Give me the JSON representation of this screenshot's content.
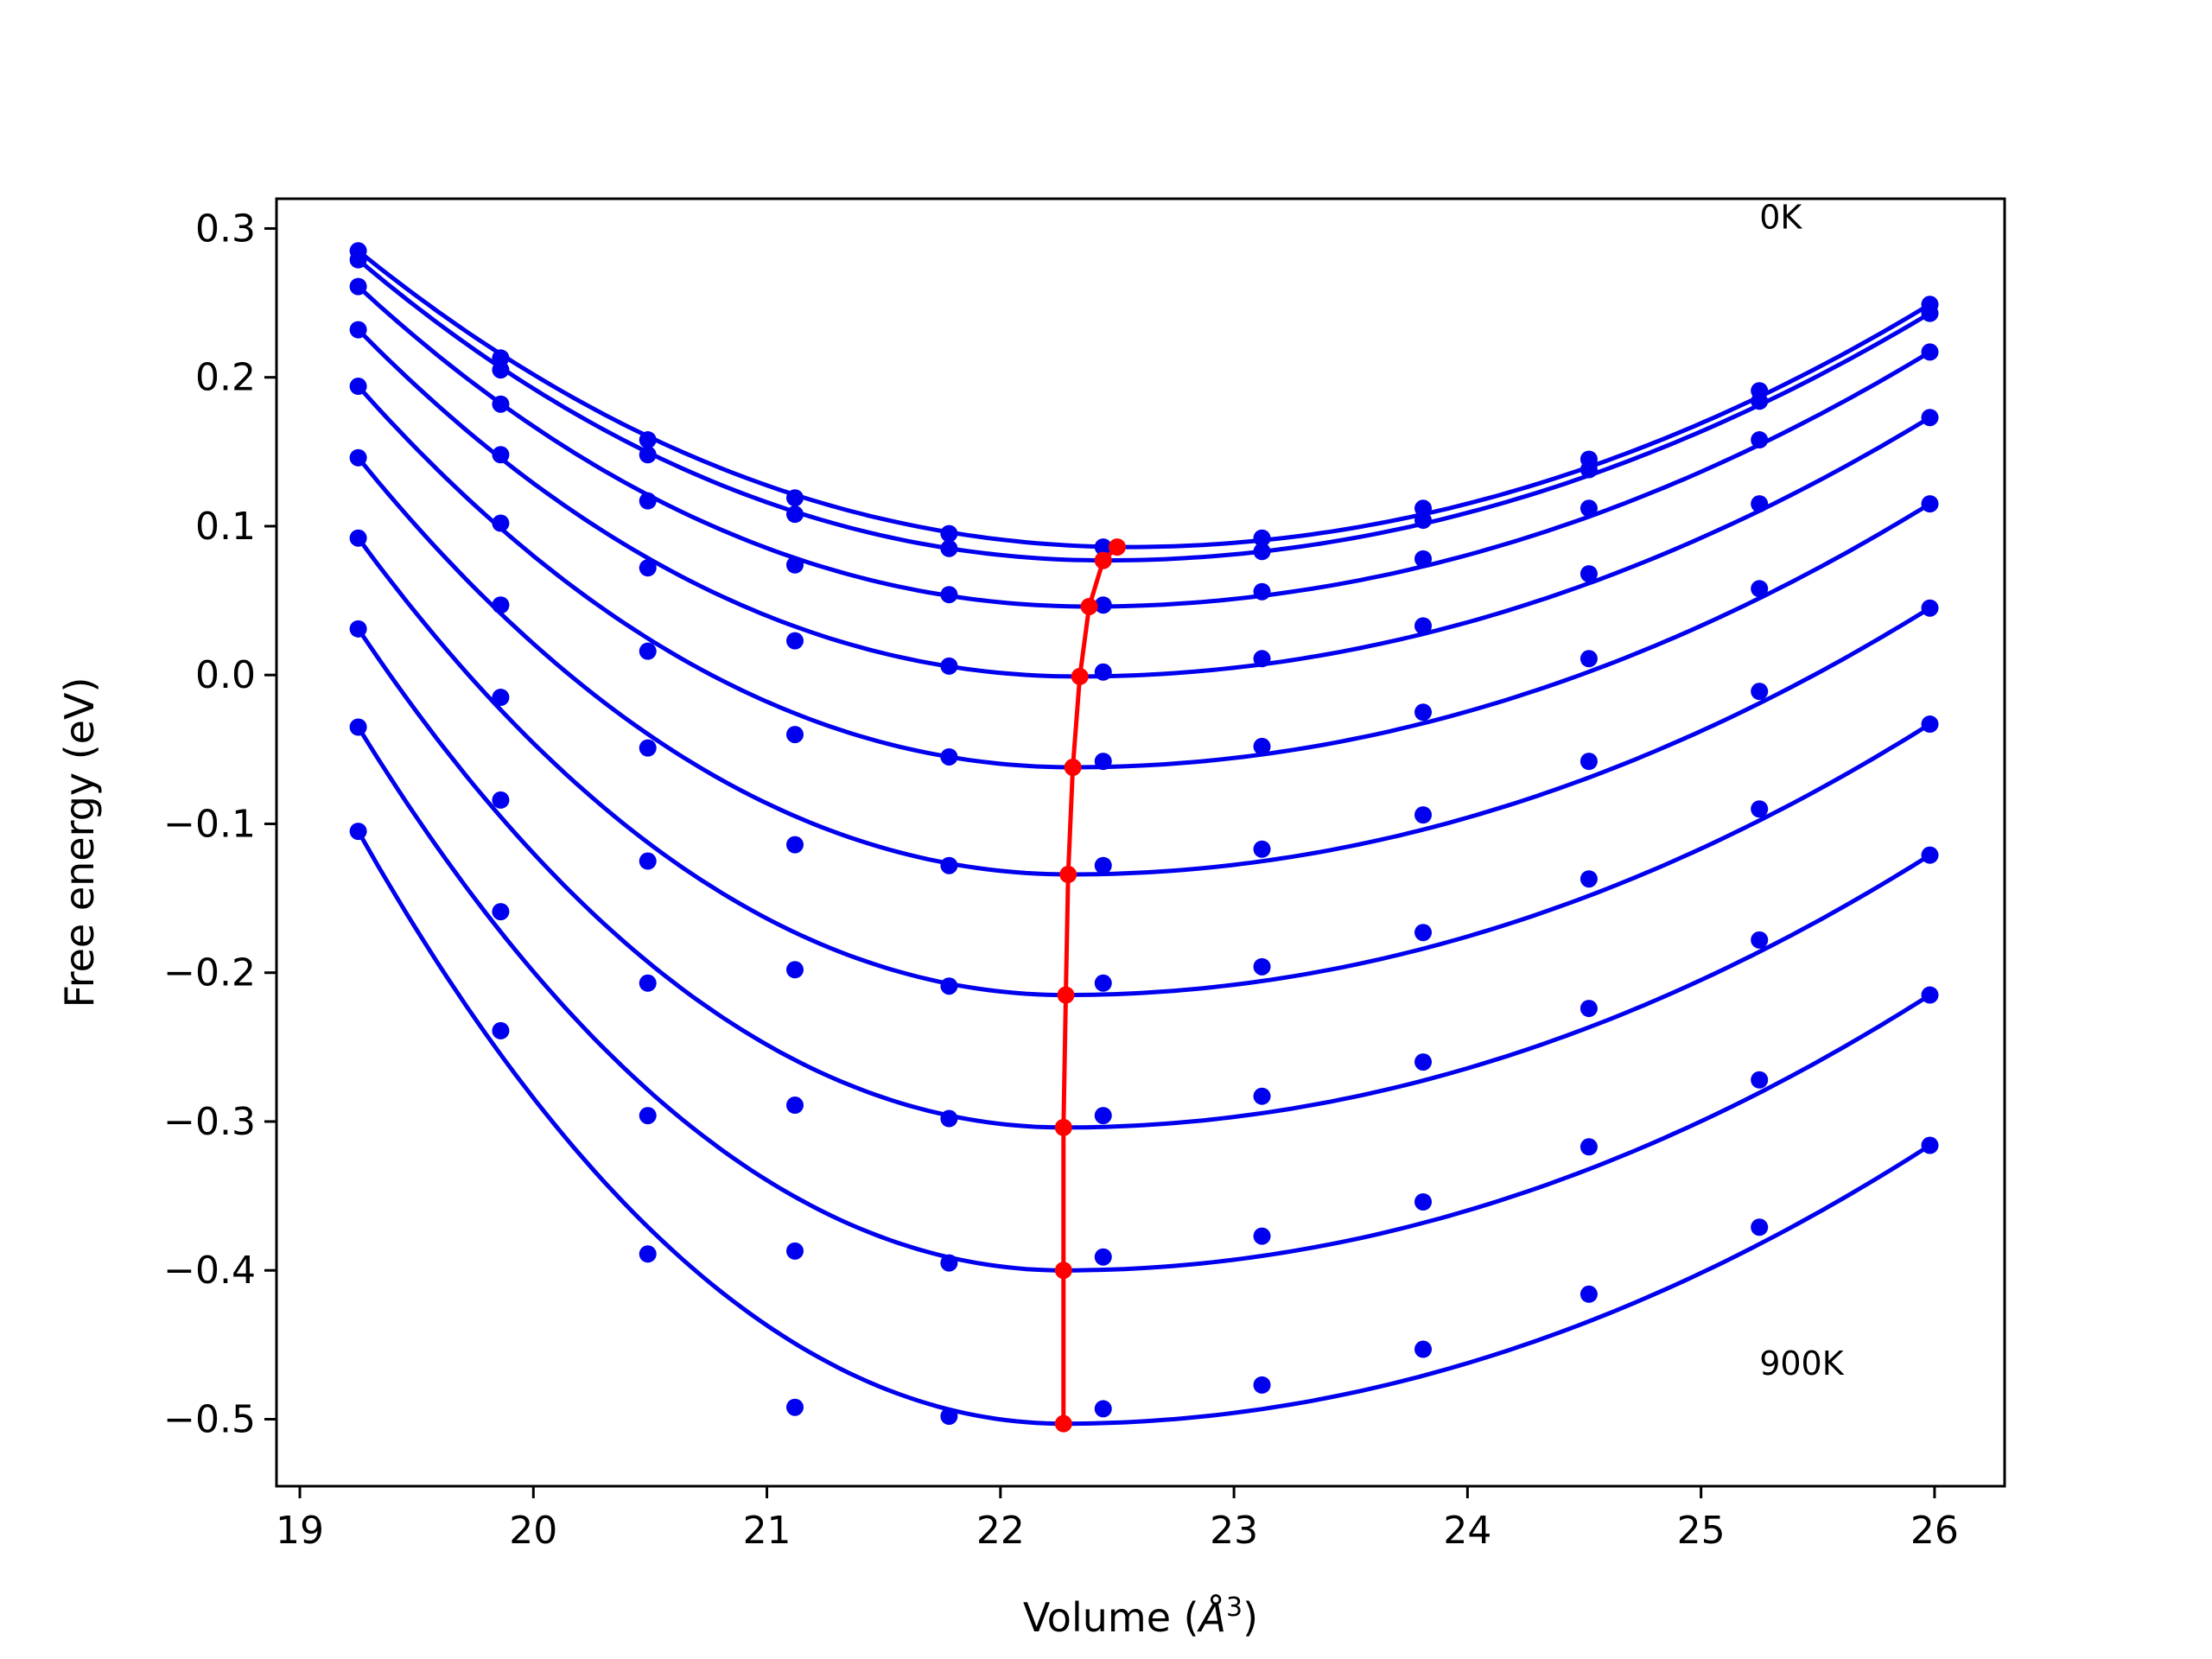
{
  "chart_data": {
    "type": "line",
    "xlabel": "Volume (",
    "xlabel_symbol": "Å",
    "xlabel_exp": "3",
    "xlabel_close": ")",
    "ylabel": "Free energy (eV)",
    "xlim": [
      18.9,
      26.3
    ],
    "ylim": [
      -0.545,
      0.32
    ],
    "xticks": [
      19,
      20,
      21,
      22,
      23,
      24,
      25,
      26
    ],
    "yticks": [
      0.3,
      0.2,
      0.1,
      0.0,
      -0.1,
      -0.2,
      -0.3,
      -0.4,
      -0.5
    ],
    "ytick_labels": [
      "0.3",
      "0.2",
      "0.1",
      "0.0",
      "−0.1",
      "−0.2",
      "−0.3",
      "−0.4",
      "−0.5"
    ],
    "colors": {
      "points": "#0000ee",
      "fits": "#0000ee",
      "minima": "#ff0000"
    },
    "annotations": [
      {
        "text": "0K",
        "x": 25.25,
        "y": 0.3
      },
      {
        "text": "900K",
        "x": 25.25,
        "y": -0.47
      }
    ],
    "volumes": [
      19.25,
      19.86,
      20.49,
      21.12,
      21.78,
      22.44,
      23.12,
      23.81,
      24.52,
      25.25,
      25.98
    ],
    "series": [
      {
        "values": [
          0.285,
          0.213,
          0.158,
          0.119,
          0.095,
          0.086,
          0.092,
          0.112,
          0.145,
          0.191,
          0.249
        ]
      },
      {
        "values": [
          0.279,
          0.205,
          0.148,
          0.108,
          0.085,
          0.077,
          0.083,
          0.104,
          0.138,
          0.184,
          0.243
        ]
      },
      {
        "values": [
          0.261,
          0.182,
          0.117,
          0.074,
          0.054,
          0.047,
          0.056,
          0.078,
          0.112,
          0.158,
          0.217
        ]
      },
      {
        "values": [
          0.232,
          0.148,
          0.072,
          0.023,
          0.006,
          0.002,
          0.011,
          0.033,
          0.068,
          0.115,
          0.173
        ]
      },
      {
        "values": [
          0.194,
          0.102,
          0.016,
          -0.04,
          -0.055,
          -0.058,
          -0.048,
          -0.025,
          0.011,
          0.058,
          0.115
        ]
      },
      {
        "values": [
          0.146,
          0.047,
          -0.049,
          -0.114,
          -0.128,
          -0.128,
          -0.117,
          -0.094,
          -0.058,
          -0.011,
          0.045
        ]
      },
      {
        "values": [
          0.092,
          -0.015,
          -0.125,
          -0.198,
          -0.209,
          -0.207,
          -0.196,
          -0.173,
          -0.137,
          -0.09,
          -0.033
        ]
      },
      {
        "values": [
          0.031,
          -0.084,
          -0.207,
          -0.289,
          -0.298,
          -0.296,
          -0.283,
          -0.26,
          -0.224,
          -0.178,
          -0.121
        ]
      },
      {
        "values": [
          -0.035,
          -0.159,
          -0.296,
          -0.387,
          -0.395,
          -0.391,
          -0.377,
          -0.354,
          -0.317,
          -0.272,
          -0.215
        ]
      },
      {
        "values": [
          -0.105,
          -0.239,
          -0.389,
          -0.492,
          -0.498,
          -0.493,
          -0.477,
          -0.453,
          -0.416,
          -0.371,
          -0.316
        ]
      }
    ],
    "fits": [
      {
        "a": 0.1,
        "v0": 22.55,
        "e0": 0.086
      },
      {
        "a": 0.1,
        "v0": 22.45,
        "e0": 0.077
      },
      {
        "a": 0.1,
        "v0": 22.38,
        "e0": 0.046
      },
      {
        "a": 0.1,
        "v0": 22.33,
        "e0": -0.001
      },
      {
        "a": 0.1,
        "v0": 22.31,
        "e0": -0.062
      },
      {
        "a": 0.1,
        "v0": 22.3,
        "e0": -0.134
      },
      {
        "a": 0.1,
        "v0": 22.28,
        "e0": -0.215
      },
      {
        "a": 0.1,
        "v0": 22.27,
        "e0": -0.304
      },
      {
        "a": 0.1,
        "v0": 22.27,
        "e0": -0.4
      },
      {
        "a": 0.1,
        "v0": 22.27,
        "e0": -0.503
      }
    ],
    "minima": {
      "x": [
        22.5,
        22.44,
        22.38,
        22.34,
        22.31,
        22.29,
        22.28,
        22.27,
        22.27,
        22.27
      ],
      "y": [
        0.086,
        0.077,
        0.046,
        -0.001,
        -0.062,
        -0.134,
        -0.215,
        -0.304,
        -0.4,
        -0.503
      ]
    }
  }
}
